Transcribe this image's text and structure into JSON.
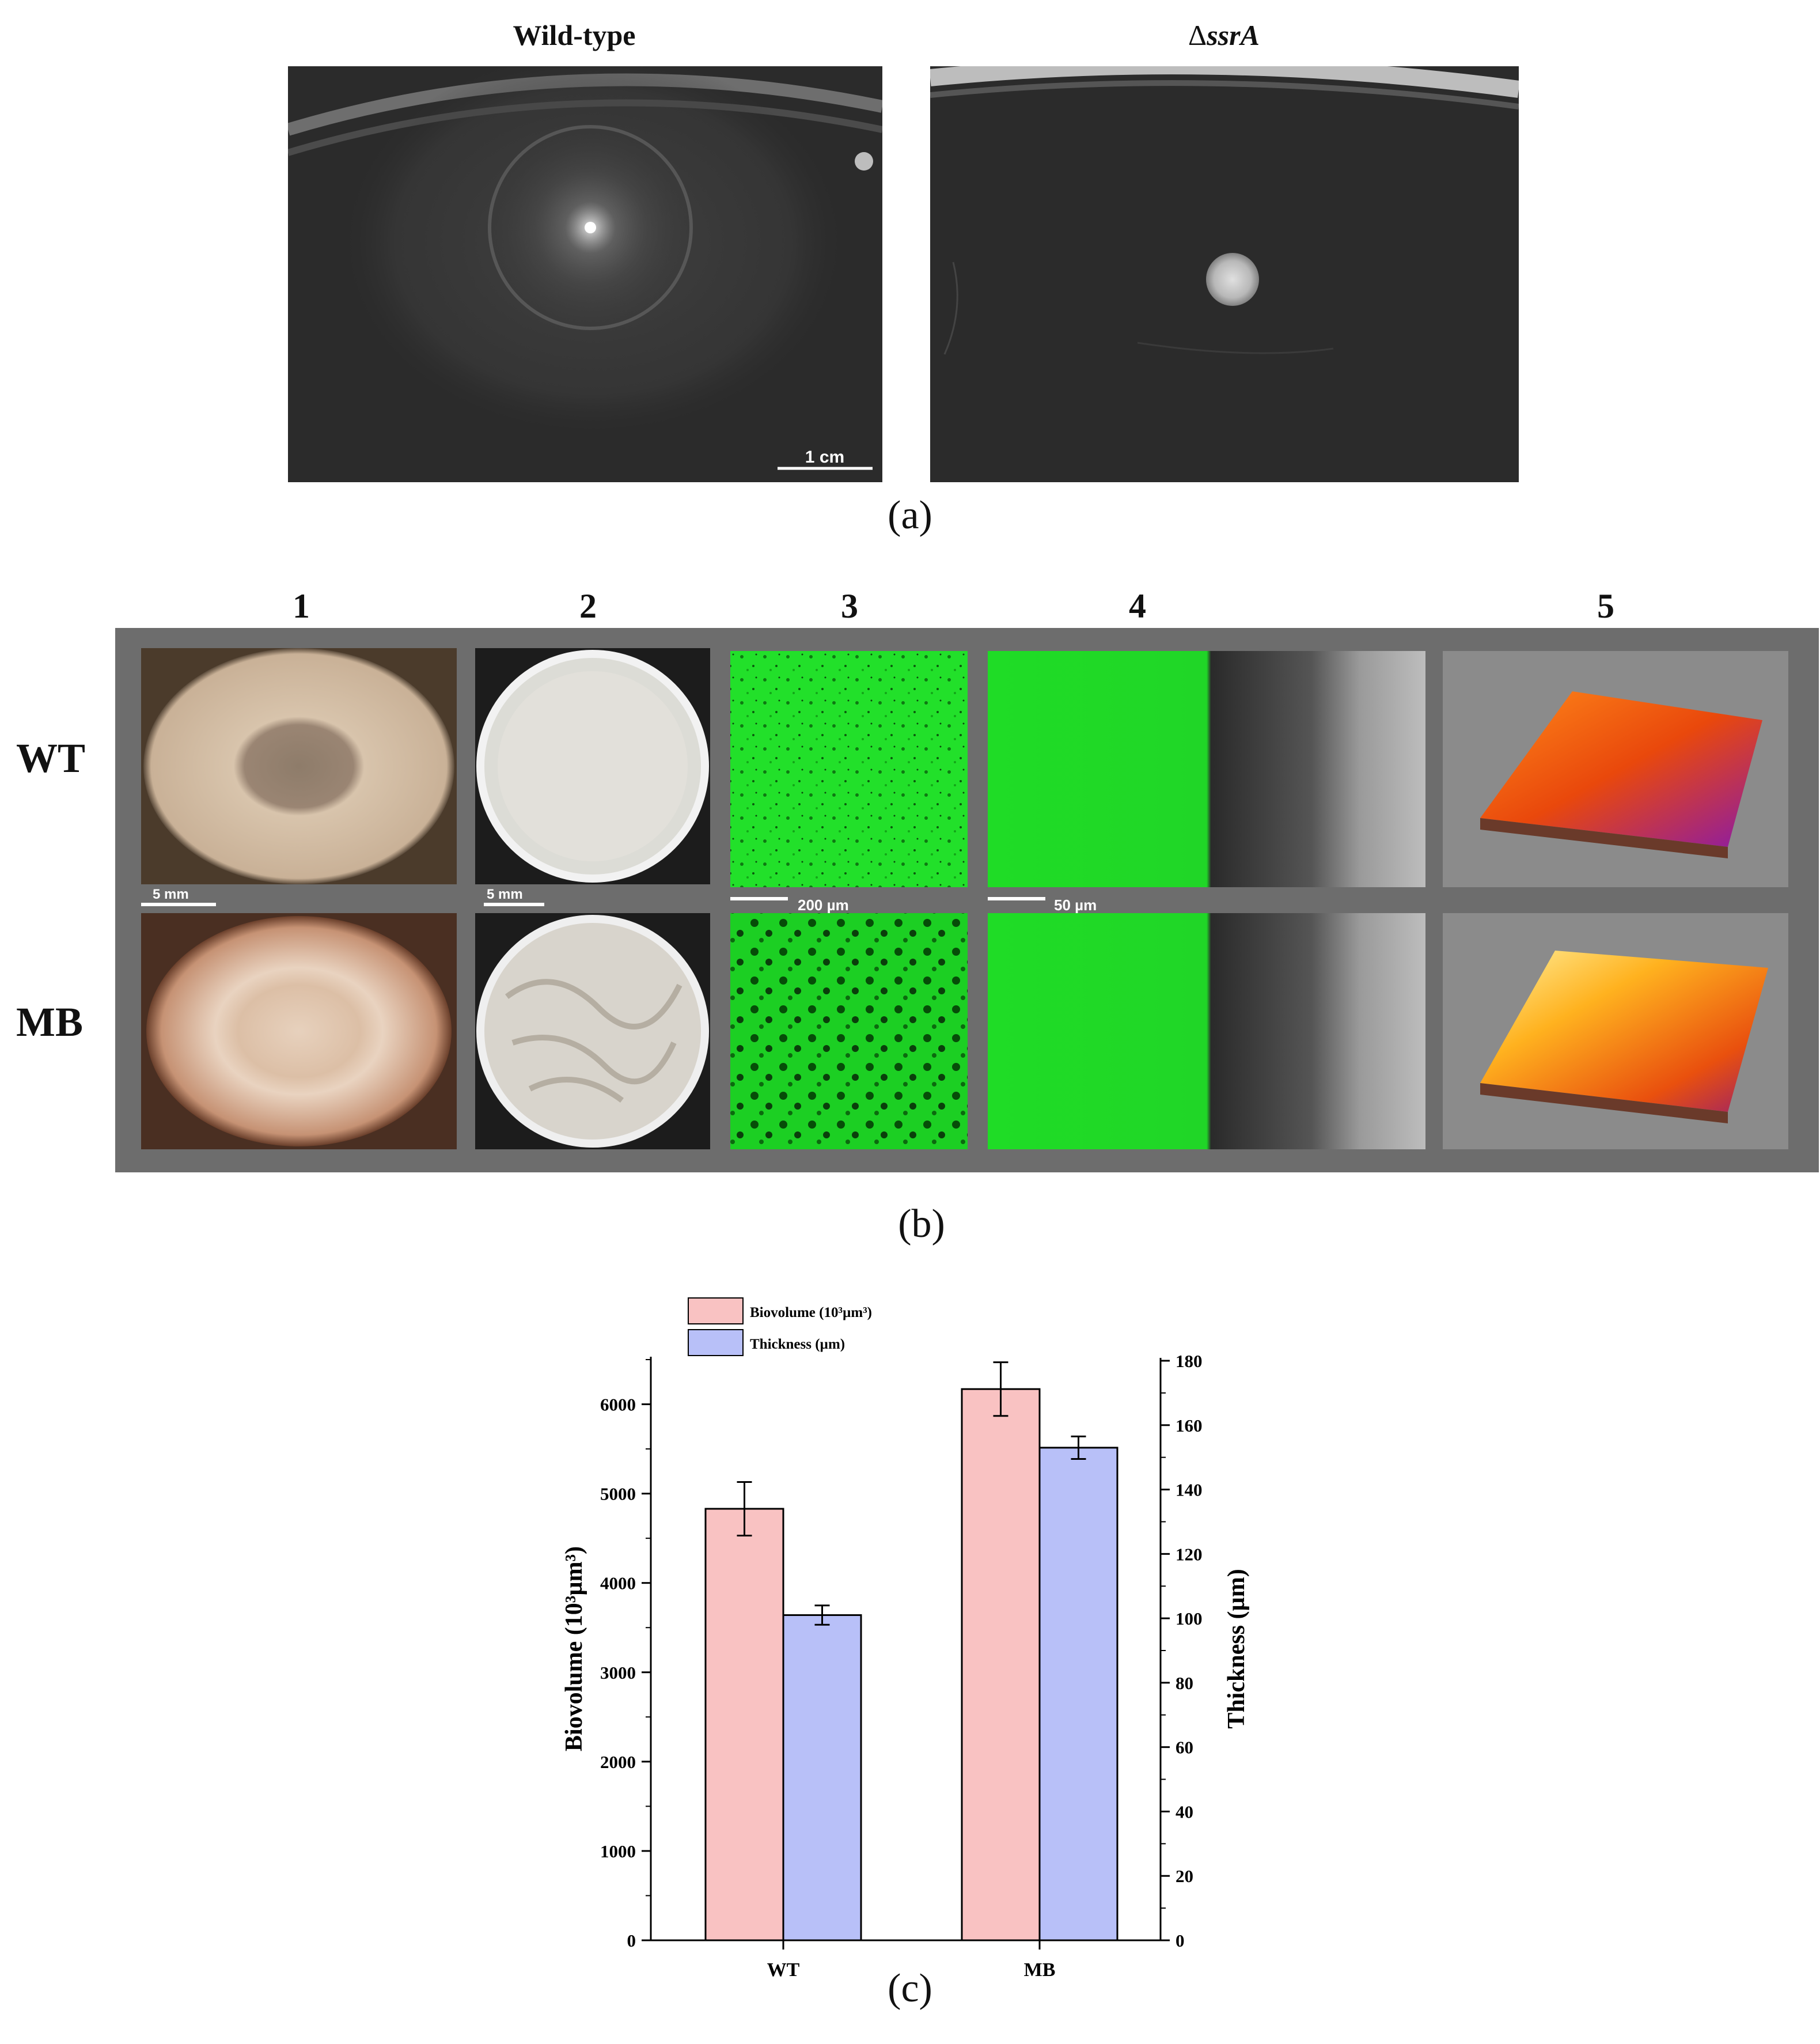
{
  "panel_a": {
    "label": "(a)",
    "left_title": "Wild-type",
    "right_title_prefix": "Δ",
    "right_title_italic": "ssrA",
    "scale_bar": "1 cm"
  },
  "panel_b": {
    "label": "(b)",
    "columns": [
      "1",
      "2",
      "3",
      "4",
      "5"
    ],
    "rows": [
      "WT",
      "MB"
    ],
    "scale_bars": [
      "5 mm",
      "5 mm",
      "200 µm",
      "50 µm"
    ]
  },
  "panel_c": {
    "label": "(c)"
  },
  "chart_data": {
    "type": "bar",
    "categories": [
      "WT",
      "MB"
    ],
    "series": [
      {
        "name": "Biovolume (10³µm³)",
        "axis": "left",
        "values": [
          4830,
          6170
        ],
        "errors": [
          300,
          300
        ],
        "color": "#f9c2c2"
      },
      {
        "name": "Thickness (µm)",
        "axis": "right",
        "values": [
          101,
          153
        ],
        "errors": [
          3,
          3.5
        ],
        "color": "#b8c0f8"
      }
    ],
    "left_axis": {
      "label": "Biovolume (10³µm³)",
      "ylim": [
        0,
        6500
      ],
      "ticks": [
        0,
        1000,
        2000,
        3000,
        4000,
        5000,
        6000
      ]
    },
    "right_axis": {
      "label": "Thickness (µm)",
      "ylim": [
        0,
        180
      ],
      "ticks": [
        0,
        20,
        40,
        60,
        80,
        100,
        120,
        140,
        160,
        180
      ]
    },
    "legend": "top-left"
  }
}
